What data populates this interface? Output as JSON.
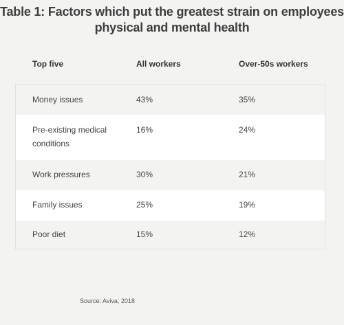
{
  "title": {
    "line1": "Table 1: Factors which put the greatest strain on employees’",
    "line2": "physical and mental health"
  },
  "columns": [
    "Top five",
    "All workers",
    "Over-50s workers"
  ],
  "rows": [
    {
      "factor": "Money issues",
      "all": "43%",
      "over50": "35%"
    },
    {
      "factor": "Pre-existing medical conditions",
      "all": "16%",
      "over50": "24%"
    },
    {
      "factor": "Work pressures",
      "all": "30%",
      "over50": "21%"
    },
    {
      "factor": "Family issues",
      "all": "25%",
      "over50": "19%"
    },
    {
      "factor": "Poor diet",
      "all": "15%",
      "over50": "12%"
    }
  ],
  "source": "Source: Aviva, 2018"
}
